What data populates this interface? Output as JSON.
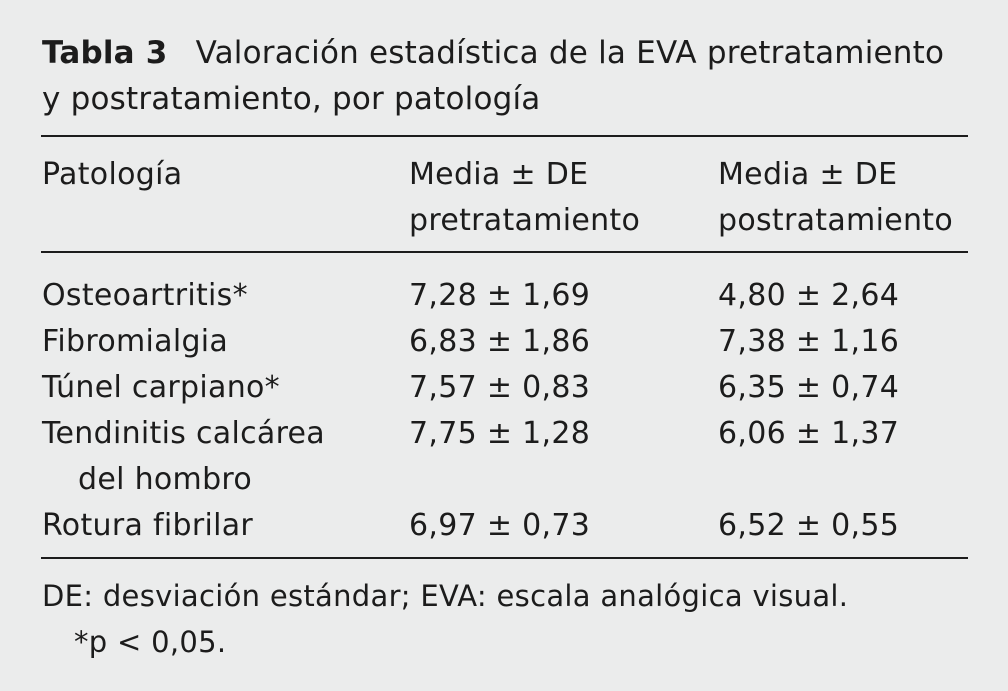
{
  "caption": {
    "label": "Tabla 3",
    "text": "Valoración estadística de la EVA pretratamiento y postratamiento, por patología"
  },
  "table": {
    "headers": [
      [
        "Patología"
      ],
      [
        "Media ± DE",
        "pretratamiento"
      ],
      [
        "Media ± DE",
        "postratamiento"
      ]
    ],
    "rows": [
      {
        "patologia": [
          "Osteoartritis*"
        ],
        "pre": "7,28 ± 1,69",
        "post": "4,80 ± 2,64"
      },
      {
        "patologia": [
          "Fibromialgia"
        ],
        "pre": "6,83 ± 1,86",
        "post": "7,38 ± 1,16"
      },
      {
        "patologia": [
          "Túnel carpiano*"
        ],
        "pre": "7,57 ± 0,83",
        "post": "6,35 ± 0,74"
      },
      {
        "patologia": [
          "Tendinitis calcárea",
          "del hombro"
        ],
        "pre": "7,75 ± 1,28",
        "post": "6,06 ± 1,37"
      },
      {
        "patologia": [
          "Rotura fibrilar"
        ],
        "pre": "6,97 ± 0,73",
        "post": "6,52 ± 0,55"
      }
    ]
  },
  "footnote": {
    "line1": "DE: desviación estándar; EVA: escala analógica visual.",
    "line2": "*p < 0,05."
  }
}
